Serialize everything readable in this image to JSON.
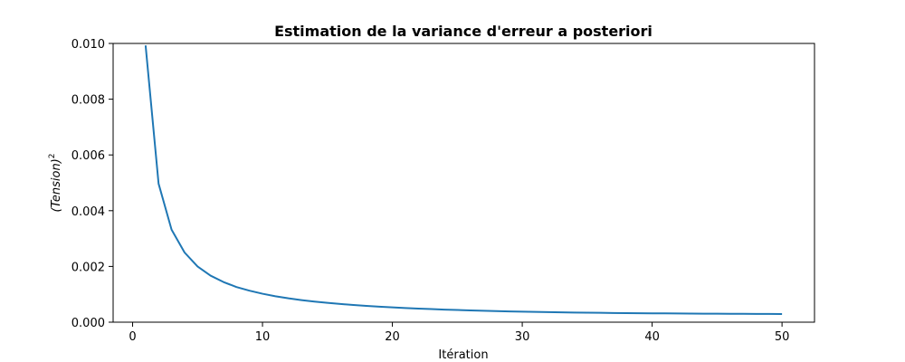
{
  "chart_data": {
    "type": "line",
    "title": "Estimation de la variance d'erreur a posteriori",
    "xlabel": "Itération",
    "ylabel": {
      "base": "(Tension)",
      "sup": "2"
    },
    "xlim": [
      -1.5,
      52.5
    ],
    "ylim": [
      0,
      0.01
    ],
    "xticks": [
      0,
      10,
      20,
      30,
      40,
      50
    ],
    "xtick_labels": [
      "0",
      "10",
      "20",
      "30",
      "40",
      "50"
    ],
    "yticks": [
      0,
      0.002,
      0.004,
      0.006,
      0.008,
      0.01
    ],
    "ytick_labels": [
      "0.000",
      "0.002",
      "0.004",
      "0.006",
      "0.008",
      "0.010"
    ],
    "grid": false,
    "legend": "none",
    "series": [
      {
        "color": "#1f77b4",
        "x": [
          1,
          2,
          3,
          4,
          5,
          6,
          7,
          8,
          9,
          10,
          11,
          12,
          13,
          14,
          15,
          16,
          17,
          18,
          19,
          20,
          21,
          22,
          23,
          24,
          25,
          26,
          27,
          28,
          29,
          30,
          31,
          32,
          33,
          34,
          35,
          36,
          37,
          38,
          39,
          40,
          41,
          42,
          43,
          44,
          45,
          46,
          47,
          48,
          49,
          50
        ],
        "y": [
          0.00993,
          0.00497,
          0.00332,
          0.0025,
          0.002,
          0.00167,
          0.00144,
          0.00126,
          0.00113,
          0.00102,
          0.00093,
          0.000856,
          0.000793,
          0.000739,
          0.000693,
          0.000652,
          0.000617,
          0.000585,
          0.000556,
          0.000531,
          0.000509,
          0.000488,
          0.000469,
          0.000452,
          0.000437,
          0.000423,
          0.00041,
          0.000398,
          0.000387,
          0.000377,
          0.000368,
          0.00036,
          0.000353,
          0.000346,
          0.00034,
          0.000335,
          0.00033,
          0.000326,
          0.000322,
          0.000318,
          0.000315,
          0.000312,
          0.000309,
          0.000306,
          0.000303,
          0.000301,
          0.000299,
          0.000297,
          0.000295,
          0.000293
        ]
      }
    ]
  }
}
